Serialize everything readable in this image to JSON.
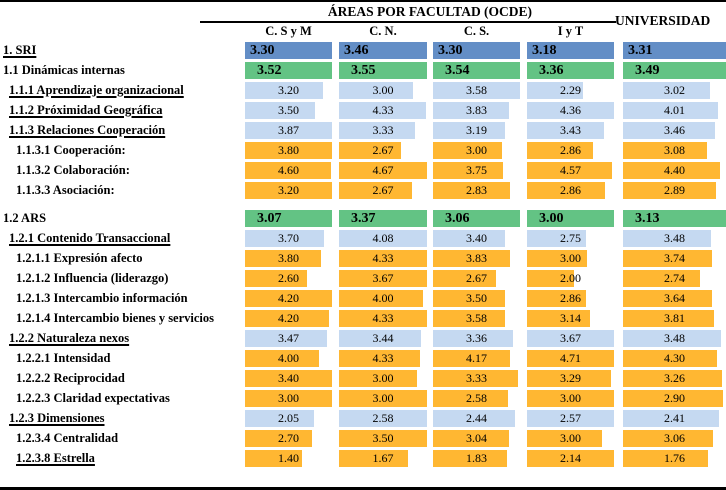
{
  "header": {
    "title": "ÁREAS POR FACULTAD (OCDE)",
    "university_label": "UNIVERSIDAD",
    "columns": [
      "C. S y M",
      "C. N.",
      "C. S.",
      "I y T"
    ]
  },
  "colors": {
    "level1_blue": "#638EC6",
    "level2_green": "#63C384",
    "level3_lightblue": "#C5D9F1",
    "level4_orange": "#FFB732"
  },
  "rows": [
    {
      "label": "1. SRI",
      "style": "blue",
      "underline": true,
      "indent": 0,
      "values": [
        "3.30",
        "3.46",
        "3.30",
        "3.18",
        "3.31"
      ]
    },
    {
      "label": "1.1 Dinámicas internas",
      "style": "green",
      "underline": false,
      "indent": 0,
      "values": [
        "3.52",
        "3.55",
        "3.54",
        "3.36",
        "3.49"
      ]
    },
    {
      "label": "1.1.1 Aprendizaje organizacional",
      "style": "lightblue",
      "underline": true,
      "indent": 1,
      "values": [
        "3.20",
        "3.00",
        "3.58",
        "2.29",
        "3.02"
      ]
    },
    {
      "label": "1.1.2 Próximidad Geográfica",
      "style": "lightblue",
      "underline": true,
      "indent": 1,
      "values": [
        "3.50",
        "4.33",
        "3.83",
        "4.36",
        "4.01"
      ]
    },
    {
      "label": "1.1.3 Relaciones Cooperación",
      "style": "lightblue",
      "underline": true,
      "indent": 1,
      "values": [
        "3.87",
        "3.33",
        "3.19",
        "3.43",
        "3.46"
      ]
    },
    {
      "label": "1.1.3.1 Cooperación:",
      "style": "orange",
      "underline": false,
      "indent": 2,
      "values": [
        "3.80",
        "2.67",
        "3.00",
        "2.86",
        "3.08"
      ]
    },
    {
      "label": "1.1.3.2 Colaboración:",
      "style": "orange",
      "underline": false,
      "indent": 2,
      "values": [
        "4.60",
        "4.67",
        "3.75",
        "4.57",
        "4.40"
      ]
    },
    {
      "label": "1.1.3.3 Asociación:",
      "style": "orange",
      "underline": false,
      "indent": 2,
      "values": [
        "3.20",
        "2.67",
        "2.83",
        "2.86",
        "2.89"
      ]
    },
    {
      "spacer": true
    },
    {
      "label": "1.2 ARS",
      "style": "green",
      "underline": false,
      "indent": 0,
      "values": [
        "3.07",
        "3.37",
        "3.06",
        "3.00",
        "3.13"
      ]
    },
    {
      "label": "1.2.1 Contenido Transaccional",
      "style": "lightblue",
      "underline": true,
      "indent": 1,
      "values": [
        "3.70",
        "4.08",
        "3.40",
        "2.75",
        "3.48"
      ]
    },
    {
      "label": "1.2.1.1 Expresión afecto",
      "style": "orange",
      "underline": false,
      "indent": 2,
      "values": [
        "3.80",
        "4.33",
        "3.83",
        "3.00",
        "3.74"
      ]
    },
    {
      "label": "1.2.1.2 Influencia (liderazgo)",
      "style": "orange",
      "underline": false,
      "indent": 2,
      "values": [
        "2.60",
        "3.67",
        "2.67",
        "2.00",
        "2.74"
      ]
    },
    {
      "label": "1.2.1.3 Intercambio información",
      "style": "orange",
      "underline": false,
      "indent": 2,
      "values": [
        "4.20",
        "4.00",
        "3.50",
        "2.86",
        "3.64"
      ]
    },
    {
      "label": "1.2.1.4 Intercambio bienes y servicios",
      "style": "orange",
      "underline": false,
      "indent": 2,
      "values": [
        "4.20",
        "4.33",
        "3.58",
        "3.14",
        "3.81"
      ]
    },
    {
      "label": "1.2.2 Naturaleza nexos",
      "style": "lightblue",
      "underline": true,
      "indent": 1,
      "values": [
        "3.47",
        "3.44",
        "3.36",
        "3.67",
        "3.48"
      ]
    },
    {
      "label": "1.2.2.1 Intensidad",
      "style": "orange",
      "underline": false,
      "indent": 2,
      "values": [
        "4.00",
        "4.33",
        "4.17",
        "4.71",
        "4.30"
      ]
    },
    {
      "label": "1.2.2.2 Reciprocidad",
      "style": "orange",
      "underline": false,
      "indent": 2,
      "values": [
        "3.40",
        "3.00",
        "3.33",
        "3.29",
        "3.26"
      ]
    },
    {
      "label": "1.2.2.3 Claridad expectativas",
      "style": "orange",
      "underline": false,
      "indent": 2,
      "values": [
        "3.00",
        "3.00",
        "2.58",
        "3.00",
        "2.90"
      ]
    },
    {
      "label": "1.2.3 Dimensiones",
      "style": "lightblue",
      "underline": true,
      "indent": 1,
      "values": [
        "2.05",
        "2.58",
        "2.44",
        "2.57",
        "2.41"
      ]
    },
    {
      "label": "1.2.3.4 Centralidad",
      "style": "orange",
      "underline": false,
      "indent": 2,
      "values": [
        "2.70",
        "3.50",
        "3.04",
        "3.00",
        "3.06"
      ]
    },
    {
      "label": "1.2.3.8 Estrella",
      "style": "orange",
      "underline": true,
      "indent": 2,
      "values": [
        "1.40",
        "1.67",
        "1.83",
        "2.14",
        "1.76"
      ]
    }
  ]
}
